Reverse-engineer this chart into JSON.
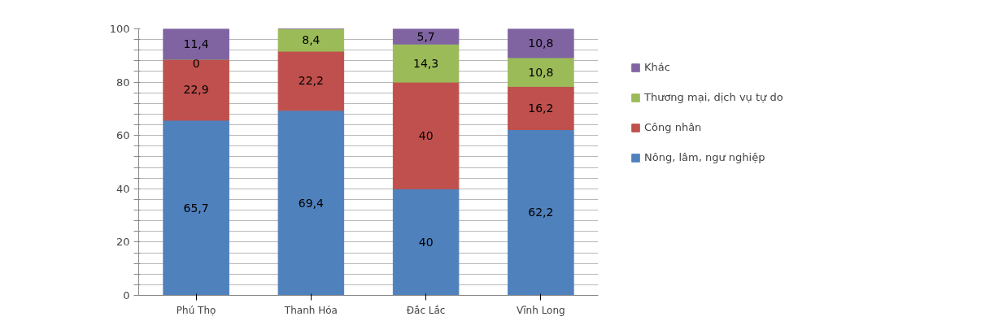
{
  "chart_data": {
    "type": "bar",
    "stacked": true,
    "categories": [
      "Phú Thọ",
      "Thanh Hóa",
      "Đắc Lắc",
      "Vĩnh Long"
    ],
    "series": [
      {
        "name": "Nông, lâm, ngư nghiệp",
        "color": "#4f81bd",
        "values": [
          65.7,
          69.4,
          40,
          62.2
        ],
        "value_labels": [
          "65,7",
          "69,4",
          "40",
          "62,2"
        ]
      },
      {
        "name": "Công nhân",
        "color": "#c0504d",
        "values": [
          22.9,
          22.2,
          40,
          16.2
        ],
        "value_labels": [
          "22,9",
          "22,2",
          "40",
          "16,2"
        ]
      },
      {
        "name": "Thương mại, dịch vụ tự do",
        "color": "#9bbb59",
        "values": [
          0,
          8.4,
          14.3,
          10.8
        ],
        "value_labels": [
          "0",
          "8,4",
          "14,3",
          "10,8"
        ]
      },
      {
        "name": "Khác",
        "color": "#8064a2",
        "values": [
          11.4,
          0,
          5.7,
          10.8
        ],
        "value_labels": [
          "11,4",
          null,
          "5,7",
          "10,8"
        ]
      }
    ],
    "ylim": [
      0,
      100
    ],
    "yticks": [
      0,
      {
        "value": 4,
        "label": null
      },
      {
        "value": 8,
        "label": null
      },
      {
        "value": 12,
        "label": null
      },
      {
        "value": 16,
        "label": null
      },
      20,
      {
        "value": 24,
        "label": null
      },
      {
        "value": 28,
        "label": null
      },
      {
        "value": 32,
        "label": null
      },
      {
        "value": 36,
        "label": null
      },
      40,
      {
        "value": 44,
        "label": null
      },
      {
        "value": 48,
        "label": null
      },
      {
        "value": 52,
        "label": null
      },
      {
        "value": 56,
        "label": null
      },
      60,
      {
        "value": 64,
        "label": null
      },
      {
        "value": 68,
        "label": null
      },
      {
        "value": 72,
        "label": null
      },
      {
        "value": 76,
        "label": null
      },
      80,
      {
        "value": 84,
        "label": null
      },
      {
        "value": 88,
        "label": null
      },
      {
        "value": 92,
        "label": null
      },
      {
        "value": 96,
        "label": null
      },
      100
    ],
    "grid": "y",
    "legend": "right"
  }
}
